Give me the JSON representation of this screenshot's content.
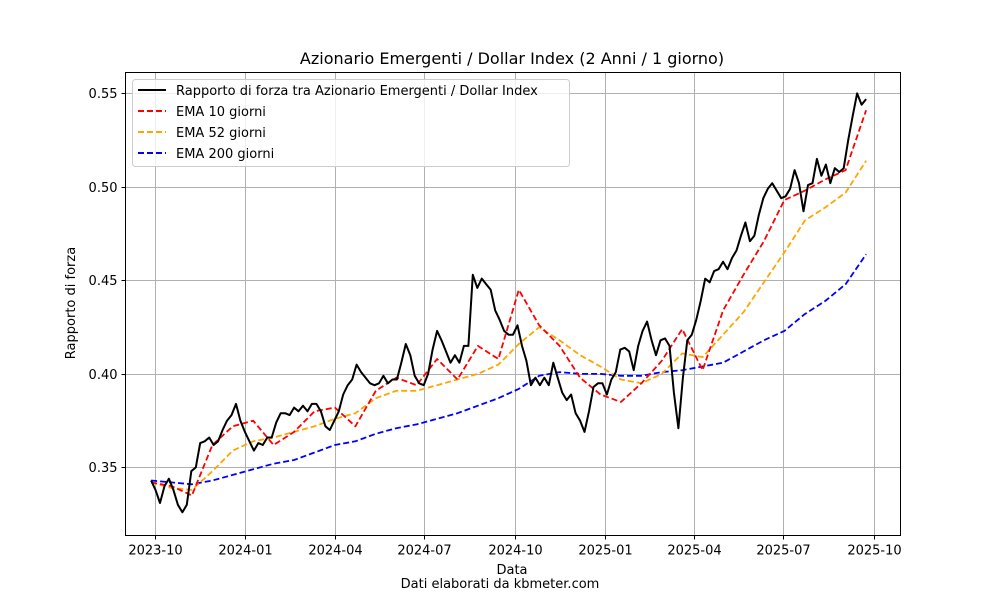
{
  "chart_data": {
    "type": "line",
    "title": "Azionario Emergenti / Dollar Index (2 Anni / 1 giorno)",
    "xlabel": "Data",
    "ylabel": "Rapporto di forza",
    "footer": "Dati elaborati da kbmeter.com",
    "ylim": [
      0.3136,
      0.5612
    ],
    "xlim": [
      "2023-09-01",
      "2025-10-28"
    ],
    "grid": true,
    "legend_position": "top-left",
    "y_ticks": [
      0.35,
      0.4,
      0.45,
      0.5,
      0.55
    ],
    "y_tick_labels": [
      "0.35",
      "0.40",
      "0.45",
      "0.50",
      "0.55"
    ],
    "x_ticks": [
      "2023-10-01",
      "2024-01-01",
      "2024-04-01",
      "2024-07-01",
      "2024-10-01",
      "2025-01-01",
      "2025-04-01",
      "2025-07-01",
      "2025-10-01"
    ],
    "x_tick_labels": [
      "2023-10",
      "2024-01",
      "2024-04",
      "2024-07",
      "2024-10",
      "2025-01",
      "2025-04",
      "2025-07",
      "2025-10"
    ],
    "start_date": "2023-09-27",
    "end_date": "2025-09-23",
    "series": [
      {
        "name": "Rapporto di forza tra Azionario Emergenti / Dollar Index",
        "color": "#000000",
        "style": "solid",
        "values": [
          0.343,
          0.338,
          0.331,
          0.34,
          0.344,
          0.338,
          0.33,
          0.326,
          0.33,
          0.348,
          0.35,
          0.363,
          0.364,
          0.366,
          0.362,
          0.364,
          0.37,
          0.375,
          0.378,
          0.384,
          0.375,
          0.369,
          0.364,
          0.359,
          0.363,
          0.362,
          0.366,
          0.366,
          0.374,
          0.379,
          0.379,
          0.378,
          0.382,
          0.38,
          0.383,
          0.38,
          0.384,
          0.384,
          0.38,
          0.372,
          0.37,
          0.375,
          0.38,
          0.389,
          0.394,
          0.397,
          0.405,
          0.401,
          0.398,
          0.395,
          0.394,
          0.395,
          0.399,
          0.395,
          0.397,
          0.397,
          0.406,
          0.416,
          0.41,
          0.399,
          0.395,
          0.394,
          0.4,
          0.413,
          0.423,
          0.418,
          0.412,
          0.406,
          0.41,
          0.406,
          0.415,
          0.415,
          0.453,
          0.446,
          0.451,
          0.448,
          0.445,
          0.434,
          0.429,
          0.423,
          0.421,
          0.421,
          0.426,
          0.415,
          0.407,
          0.394,
          0.398,
          0.394,
          0.398,
          0.394,
          0.406,
          0.398,
          0.39,
          0.386,
          0.389,
          0.379,
          0.375,
          0.369,
          0.38,
          0.393,
          0.395,
          0.395,
          0.389,
          0.397,
          0.401,
          0.413,
          0.414,
          0.412,
          0.402,
          0.415,
          0.423,
          0.428,
          0.418,
          0.41,
          0.418,
          0.419,
          0.415,
          0.39,
          0.371,
          0.398,
          0.418,
          0.421,
          0.429,
          0.439,
          0.451,
          0.449,
          0.455,
          0.456,
          0.46,
          0.456,
          0.462,
          0.466,
          0.474,
          0.481,
          0.471,
          0.474,
          0.485,
          0.494,
          0.499,
          0.502,
          0.498,
          0.494,
          0.495,
          0.499,
          0.509,
          0.502,
          0.487,
          0.501,
          0.502,
          0.515,
          0.506,
          0.512,
          0.502,
          0.51,
          0.508,
          0.51,
          0.525,
          0.538,
          0.55,
          0.544,
          0.547
        ]
      },
      {
        "name": "EMA 10 giorni",
        "color": "#ff0000",
        "style": "dashed",
        "values": [
          0.342,
          0.34,
          0.335,
          0.362,
          0.372,
          0.375,
          0.362,
          0.369,
          0.38,
          0.382,
          0.372,
          0.391,
          0.398,
          0.394,
          0.408,
          0.397,
          0.415,
          0.408,
          0.445,
          0.426,
          0.415,
          0.398,
          0.389,
          0.385,
          0.395,
          0.407,
          0.424,
          0.402,
          0.434,
          0.453,
          0.471,
          0.493,
          0.498,
          0.504,
          0.509,
          0.541
        ]
      },
      {
        "name": "EMA 52 giorni",
        "color": "#ffa500",
        "style": "dashed",
        "values": [
          0.342,
          0.339,
          0.338,
          0.348,
          0.359,
          0.364,
          0.366,
          0.369,
          0.372,
          0.376,
          0.379,
          0.387,
          0.391,
          0.391,
          0.394,
          0.397,
          0.4,
          0.405,
          0.416,
          0.425,
          0.418,
          0.41,
          0.404,
          0.397,
          0.395,
          0.4,
          0.411,
          0.409,
          0.421,
          0.433,
          0.449,
          0.465,
          0.482,
          0.489,
          0.497,
          0.514
        ]
      },
      {
        "name": "EMA 200 giorni",
        "color": "#0000ff",
        "style": "dashed",
        "values": [
          0.343,
          0.342,
          0.341,
          0.343,
          0.346,
          0.349,
          0.352,
          0.354,
          0.358,
          0.362,
          0.364,
          0.368,
          0.371,
          0.373,
          0.376,
          0.379,
          0.383,
          0.387,
          0.392,
          0.399,
          0.401,
          0.4,
          0.4,
          0.399,
          0.399,
          0.401,
          0.402,
          0.404,
          0.406,
          0.412,
          0.418,
          0.423,
          0.432,
          0.439,
          0.448,
          0.464
        ]
      }
    ]
  }
}
